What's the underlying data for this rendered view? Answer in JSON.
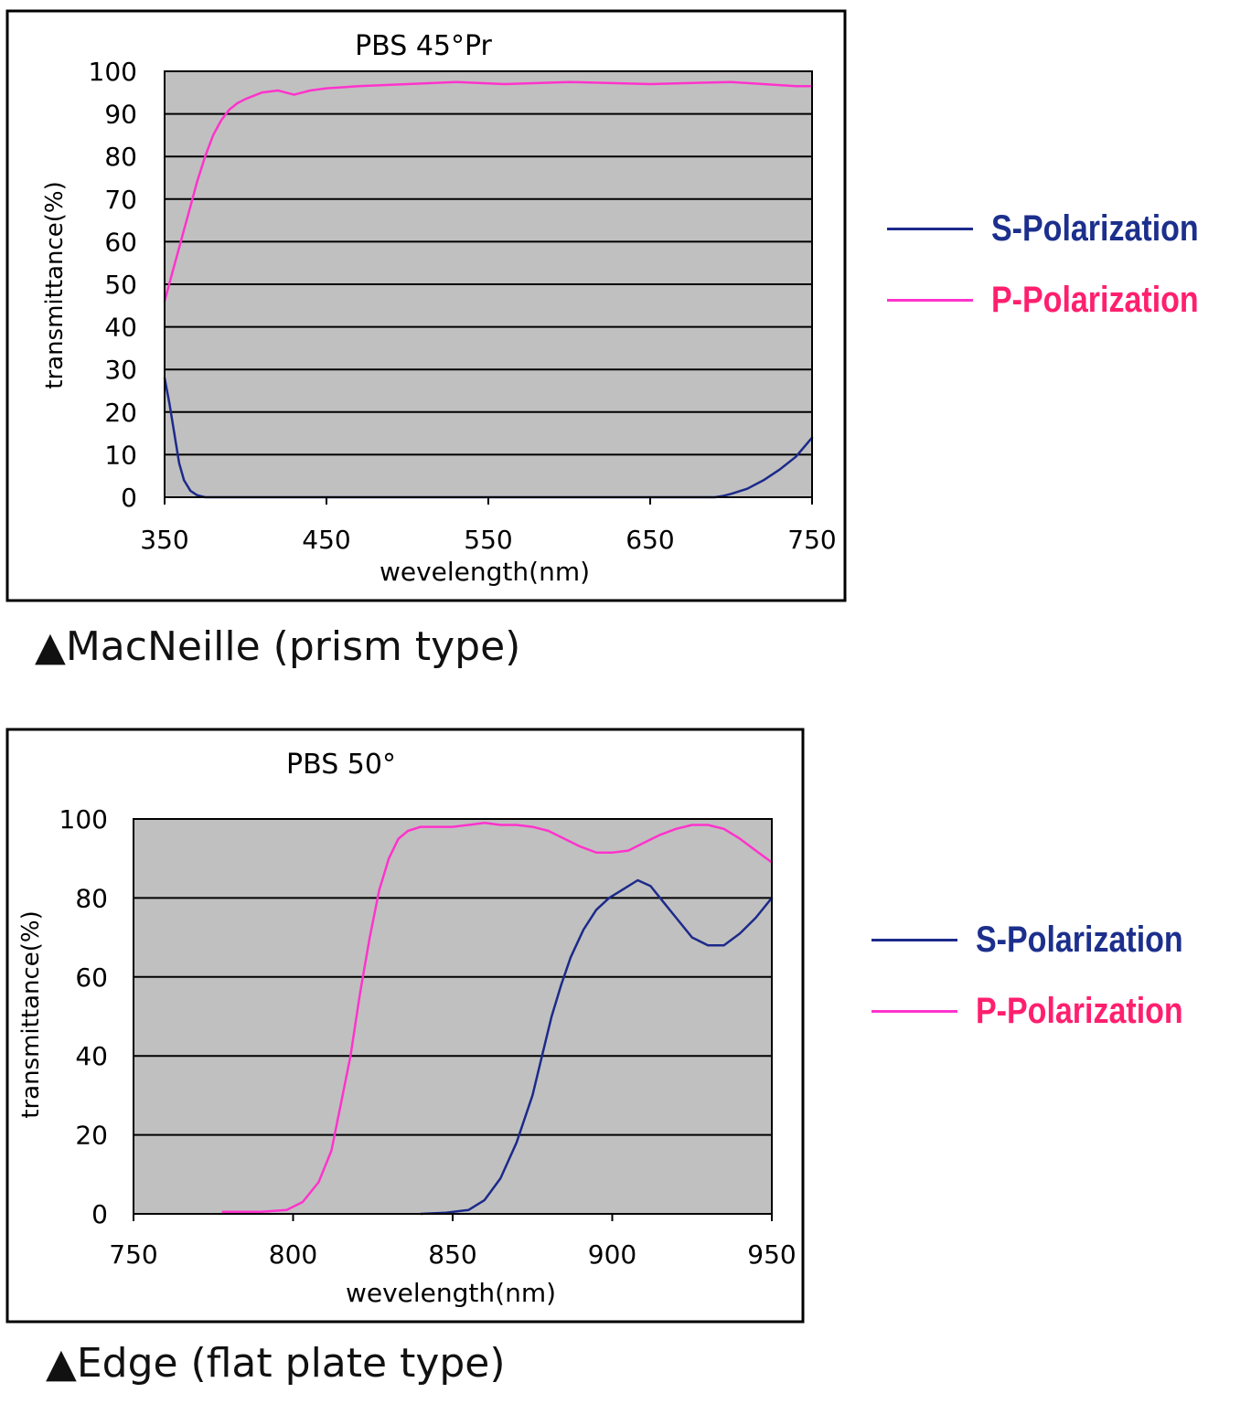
{
  "colors": {
    "s_polarization": "#1c2a8a",
    "p_polarization": "#ff33cc",
    "s_label": "#1c2f8c",
    "p_label": "#ff1f6e",
    "plot_background": "#c0c0c0"
  },
  "chart_data": [
    {
      "type": "line",
      "title": "PBS 45°Pr",
      "xlabel": "wevelength(nm)",
      "ylabel": "transmittance(%)",
      "xlim": [
        350,
        750
      ],
      "ylim": [
        0,
        100
      ],
      "xticks": [
        "350",
        "450",
        "550",
        "650",
        "750"
      ],
      "yticks": [
        "0",
        "10",
        "20",
        "30",
        "40",
        "50",
        "60",
        "70",
        "80",
        "90",
        "100"
      ],
      "grid": "horizontal",
      "legend_position": "right",
      "caption": "▲MacNeille (prism type)",
      "series": [
        {
          "name": "S-Polarization",
          "color_key": "s_polarization",
          "points": [
            [
              350,
              28
            ],
            [
              353,
              22
            ],
            [
              356,
              15
            ],
            [
              359,
              8
            ],
            [
              362,
              4
            ],
            [
              366,
              1.5
            ],
            [
              370,
              0.5
            ],
            [
              375,
              0
            ],
            [
              450,
              0
            ],
            [
              550,
              0
            ],
            [
              650,
              0
            ],
            [
              690,
              0
            ],
            [
              695,
              0.3
            ],
            [
              700,
              0.8
            ],
            [
              710,
              2
            ],
            [
              720,
              4
            ],
            [
              730,
              6.5
            ],
            [
              740,
              9.5
            ],
            [
              750,
              14
            ]
          ]
        },
        {
          "name": "P-Polarization",
          "color_key": "p_polarization",
          "points": [
            [
              350,
              46
            ],
            [
              355,
              53
            ],
            [
              360,
              60
            ],
            [
              365,
              67
            ],
            [
              370,
              74
            ],
            [
              375,
              80
            ],
            [
              380,
              85
            ],
            [
              385,
              88.5
            ],
            [
              390,
              91
            ],
            [
              395,
              92.5
            ],
            [
              400,
              93.5
            ],
            [
              410,
              95
            ],
            [
              420,
              95.5
            ],
            [
              425,
              95
            ],
            [
              430,
              94.5
            ],
            [
              440,
              95.5
            ],
            [
              450,
              96
            ],
            [
              470,
              96.5
            ],
            [
              500,
              97
            ],
            [
              530,
              97.5
            ],
            [
              560,
              97
            ],
            [
              600,
              97.5
            ],
            [
              650,
              97
            ],
            [
              700,
              97.5
            ],
            [
              720,
              97
            ],
            [
              740,
              96.5
            ],
            [
              750,
              96.5
            ]
          ]
        }
      ]
    },
    {
      "type": "line",
      "title": "PBS 50°",
      "xlabel": "wevelength(nm)",
      "ylabel": "transmittance(%)",
      "xlim": [
        750,
        950
      ],
      "ylim": [
        0,
        100
      ],
      "xticks": [
        "750",
        "800",
        "850",
        "900",
        "950"
      ],
      "yticks": [
        "0",
        "20",
        "40",
        "60",
        "80",
        "100"
      ],
      "grid": "horizontal",
      "legend_position": "right",
      "caption": "▲Edge (flat plate type)",
      "series": [
        {
          "name": "S-Polarization",
          "color_key": "s_polarization",
          "points": [
            [
              840,
              0
            ],
            [
              848,
              0.3
            ],
            [
              855,
              1
            ],
            [
              860,
              3.5
            ],
            [
              865,
              9
            ],
            [
              870,
              18
            ],
            [
              875,
              30
            ],
            [
              878,
              40
            ],
            [
              881,
              50
            ],
            [
              884,
              58
            ],
            [
              887,
              65
            ],
            [
              891,
              72
            ],
            [
              895,
              77
            ],
            [
              899,
              80
            ],
            [
              903,
              82
            ],
            [
              908,
              84.5
            ],
            [
              912,
              83
            ],
            [
              916,
              79
            ],
            [
              920,
              75
            ],
            [
              925,
              70
            ],
            [
              930,
              68
            ],
            [
              935,
              68
            ],
            [
              940,
              71
            ],
            [
              945,
              75
            ],
            [
              950,
              80
            ]
          ]
        },
        {
          "name": "P-Polarization",
          "color_key": "p_polarization",
          "points": [
            [
              778,
              0.5
            ],
            [
              790,
              0.5
            ],
            [
              798,
              1
            ],
            [
              803,
              3
            ],
            [
              808,
              8
            ],
            [
              812,
              16
            ],
            [
              815,
              28
            ],
            [
              818,
              40
            ],
            [
              821,
              56
            ],
            [
              824,
              70
            ],
            [
              827,
              82
            ],
            [
              830,
              90
            ],
            [
              833,
              95
            ],
            [
              836,
              97
            ],
            [
              840,
              98
            ],
            [
              850,
              98
            ],
            [
              855,
              98.5
            ],
            [
              860,
              99
            ],
            [
              865,
              98.5
            ],
            [
              870,
              98.5
            ],
            [
              875,
              98
            ],
            [
              880,
              97
            ],
            [
              885,
              95
            ],
            [
              890,
              93
            ],
            [
              895,
              91.5
            ],
            [
              900,
              91.5
            ],
            [
              905,
              92
            ],
            [
              910,
              94
            ],
            [
              915,
              96
            ],
            [
              920,
              97.5
            ],
            [
              925,
              98.5
            ],
            [
              930,
              98.5
            ],
            [
              935,
              97.5
            ],
            [
              940,
              95
            ],
            [
              945,
              92
            ],
            [
              950,
              89
            ]
          ]
        }
      ]
    }
  ]
}
